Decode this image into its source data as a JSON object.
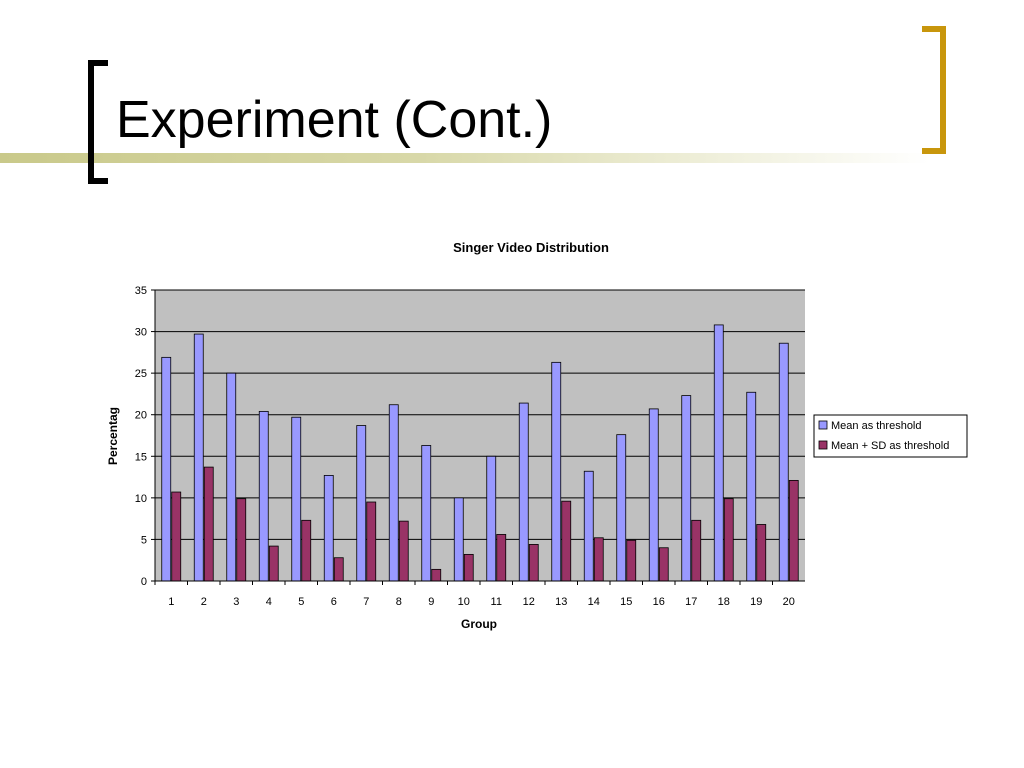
{
  "slide": {
    "title": "Experiment (Cont.)"
  },
  "colors": {
    "accent_gold": "#c8960c",
    "series_1": "#9999ff",
    "series_2": "#993366",
    "plot_bg": "#c0c0c0"
  },
  "chart_data": {
    "type": "bar",
    "title": "Singer Video Distribution",
    "xlabel": "Group",
    "ylabel": "Percentag",
    "categories": [
      "1",
      "2",
      "3",
      "4",
      "5",
      "6",
      "7",
      "8",
      "9",
      "10",
      "11",
      "12",
      "13",
      "14",
      "15",
      "16",
      "17",
      "18",
      "19",
      "20"
    ],
    "ylim": [
      0,
      35
    ],
    "yticks": [
      0,
      5,
      10,
      15,
      20,
      25,
      30,
      35
    ],
    "grid": true,
    "legend_position": "right",
    "series": [
      {
        "name": "Mean as threshold",
        "values": [
          26.9,
          29.7,
          25.0,
          20.4,
          19.7,
          12.7,
          18.7,
          21.2,
          16.3,
          10.0,
          15.0,
          21.4,
          26.3,
          13.2,
          17.6,
          20.7,
          22.3,
          30.8,
          22.7,
          28.6
        ]
      },
      {
        "name": "Mean + SD as threshold",
        "values": [
          10.7,
          13.7,
          9.9,
          4.2,
          7.3,
          2.8,
          9.5,
          7.2,
          1.4,
          3.2,
          5.6,
          4.4,
          9.6,
          5.2,
          4.9,
          4.0,
          7.3,
          9.9,
          6.8,
          12.1
        ]
      }
    ]
  }
}
